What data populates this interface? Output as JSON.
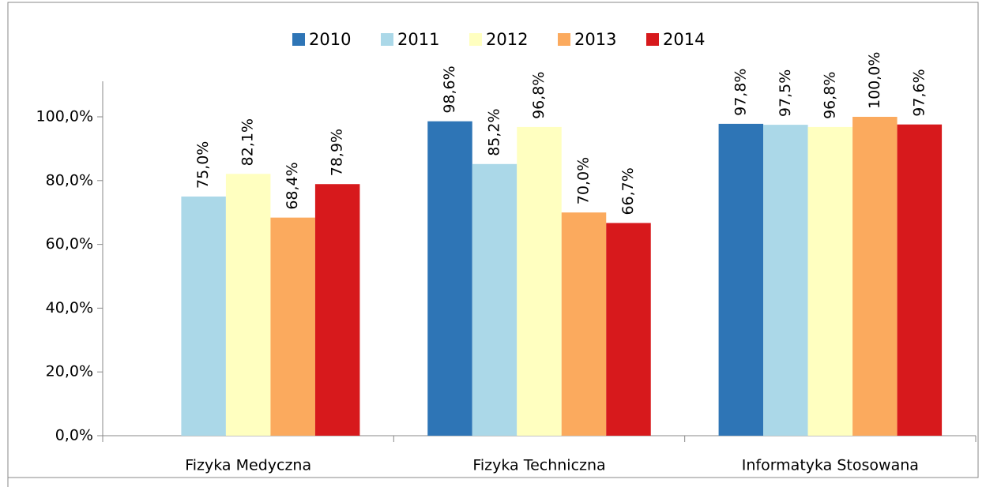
{
  "chart_data": {
    "type": "bar",
    "categories": [
      "Fizyka Medyczna",
      "Fizyka Techniczna",
      "Informatyka Stosowana"
    ],
    "series": [
      {
        "name": "2010",
        "color": "#2e75b6",
        "values": [
          null,
          98.6,
          97.8
        ],
        "value_labels": [
          null,
          "98,6%",
          "97,8%"
        ]
      },
      {
        "name": "2011",
        "color": "#abd8e8",
        "values": [
          75.0,
          85.2,
          97.5
        ],
        "value_labels": [
          "75,0%",
          "85,2%",
          "97,5%"
        ]
      },
      {
        "name": "2012",
        "color": "#ffffc0",
        "values": [
          82.1,
          96.8,
          96.8
        ],
        "value_labels": [
          "82,1%",
          "96,8%",
          "96,8%"
        ]
      },
      {
        "name": "2013",
        "color": "#fbaa5e",
        "values": [
          68.4,
          70.0,
          100.0
        ],
        "value_labels": [
          "68,4%",
          "70,0%",
          "100,0%"
        ]
      },
      {
        "name": "2014",
        "color": "#d7191c",
        "values": [
          78.9,
          66.7,
          97.6
        ],
        "value_labels": [
          "78,9%",
          "66,7%",
          "97,6%"
        ]
      }
    ],
    "ylim": [
      0,
      100
    ],
    "yticks": [
      {
        "value": 0,
        "label": "0,0%"
      },
      {
        "value": 20,
        "label": "20,0%"
      },
      {
        "value": 40,
        "label": "40,0%"
      },
      {
        "value": 60,
        "label": "60,0%"
      },
      {
        "value": 80,
        "label": "80,0%"
      },
      {
        "value": 100,
        "label": "100,0%"
      }
    ],
    "legend": "top"
  }
}
